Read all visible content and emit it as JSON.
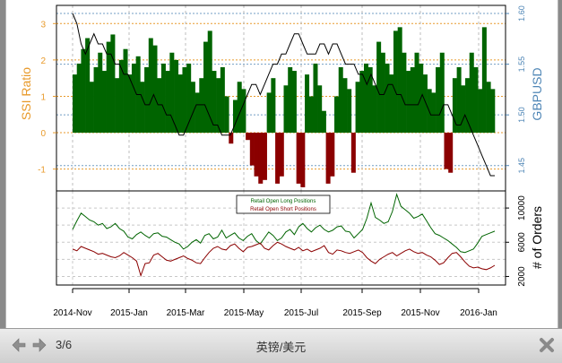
{
  "nav": {
    "page_indicator": "3/6",
    "caption": "英镑/美元"
  },
  "colors": {
    "long_bar": "#006400",
    "short_bar": "#8b0000",
    "ssi_axis": "#e89a2b",
    "gbpusd_axis": "#4f86b6",
    "price_line": "#000000"
  },
  "icons": [
    "arrow-left-icon",
    "arrow-right-icon",
    "close-icon"
  ],
  "chart_data": [
    {
      "type": "bar",
      "title": "",
      "ylabel": "SSI Ratio",
      "y2label": "GBPUSD",
      "ylim": [
        -1.6,
        3.5
      ],
      "y2lim": [
        1.425,
        1.608
      ],
      "y_ticks": [
        "-1",
        "0",
        "1",
        "2",
        "3"
      ],
      "y2_ticks": [
        "1.45",
        "1.50",
        "1.55",
        "1.60"
      ],
      "x_ticks": [
        "2014-Nov",
        "2015-Jan",
        "2015-Mar",
        "2015-May",
        "2015-Jul",
        "2015-Sep",
        "2015-Nov",
        "2016-Jan"
      ],
      "grid": true,
      "series": [
        {
          "kind": "ssi_bars",
          "values": [
            1.6,
            1.9,
            2.3,
            2.6,
            1.4,
            1.8,
            2.2,
            1.7,
            2.5,
            2.7,
            1.5,
            2.0,
            2.3,
            1.6,
            1.9,
            2.1,
            1.4,
            1.8,
            2.6,
            2.4,
            1.5,
            1.9,
            1.7,
            2.2,
            2.0,
            1.6,
            1.8,
            1.9,
            1.4,
            1.1,
            1.5,
            2.5,
            2.8,
            1.7,
            1.5,
            1.8,
            1.0,
            -0.3,
            0.9,
            1.4,
            1.2,
            -0.2,
            -0.9,
            -1.2,
            -1.4,
            -1.3,
            1.1,
            1.5,
            -1.4,
            -1.2,
            1.3,
            1.8,
            1.7,
            -1.4,
            -1.5,
            1.6,
            1.0,
            1.9,
            1.3,
            0.6,
            -1.4,
            -1.2,
            1.0,
            1.8,
            1.5,
            1.2,
            -1.1,
            1.4,
            1.7,
            1.9,
            1.8,
            1.3,
            2.5,
            2.2,
            1.9,
            1.6,
            2.8,
            2.9,
            2.2,
            1.7,
            1.8,
            2.2,
            1.9,
            1.6,
            1.2,
            1.1,
            1.8,
            2.2,
            -1.0,
            -1.1,
            1.5,
            1.8,
            1.3,
            1.5,
            2.2,
            1.8,
            1.2,
            2.9,
            1.4,
            1.2
          ]
        },
        {
          "kind": "gbpusd_line",
          "values": [
            1.6,
            1.59,
            1.57,
            1.56,
            1.57,
            1.58,
            1.57,
            1.57,
            1.56,
            1.56,
            1.55,
            1.55,
            1.54,
            1.54,
            1.53,
            1.52,
            1.52,
            1.51,
            1.51,
            1.52,
            1.51,
            1.51,
            1.5,
            1.5,
            1.49,
            1.48,
            1.48,
            1.49,
            1.5,
            1.51,
            1.51,
            1.51,
            1.5,
            1.49,
            1.49,
            1.48,
            1.48,
            1.48,
            1.49,
            1.5,
            1.51,
            1.52,
            1.53,
            1.53,
            1.52,
            1.53,
            1.54,
            1.55,
            1.55,
            1.56,
            1.56,
            1.57,
            1.58,
            1.58,
            1.57,
            1.56,
            1.56,
            1.56,
            1.57,
            1.57,
            1.56,
            1.57,
            1.57,
            1.56,
            1.55,
            1.55,
            1.55,
            1.54,
            1.54,
            1.53,
            1.54,
            1.53,
            1.52,
            1.52,
            1.53,
            1.53,
            1.52,
            1.52,
            1.51,
            1.51,
            1.51,
            1.51,
            1.52,
            1.51,
            1.5,
            1.5,
            1.5,
            1.51,
            1.51,
            1.5,
            1.49,
            1.49,
            1.5,
            1.49,
            1.48,
            1.47,
            1.46,
            1.45,
            1.44,
            1.44
          ]
        }
      ]
    },
    {
      "type": "line",
      "title": "",
      "ylabel": "# of Orders",
      "ylim": [
        1000,
        12000
      ],
      "y_ticks": [
        "2000",
        "6000",
        "10000"
      ],
      "x_ticks": [
        "2014-Nov",
        "2015-Jan",
        "2015-Mar",
        "2015-May",
        "2015-Jul",
        "2015-Sep",
        "2015-Nov",
        "2016-Jan"
      ],
      "grid": true,
      "legend_position": "top-center",
      "series": [
        {
          "name": "Retail Open Long Positions",
          "values": [
            7500,
            8500,
            9400,
            9000,
            8600,
            8400,
            8000,
            8200,
            7600,
            7800,
            8200,
            7600,
            7300,
            6600,
            6400,
            6900,
            7200,
            6800,
            6500,
            7000,
            7100,
            6700,
            6600,
            6300,
            6000,
            5800,
            5200,
            5500,
            6000,
            6300,
            5900,
            6800,
            7000,
            6400,
            6600,
            7400,
            6500,
            6800,
            7100,
            6500,
            6200,
            6700,
            7000,
            6200,
            5800,
            6500,
            7200,
            6800,
            6200,
            6500,
            7200,
            7500,
            6900,
            7800,
            8200,
            7600,
            7200,
            7700,
            8000,
            7500,
            7200,
            7400,
            7800,
            7900,
            7300,
            7200,
            6500,
            7000,
            7500,
            8800,
            10600,
            8900,
            8600,
            8200,
            8400,
            9600,
            11600,
            10200,
            9800,
            9400,
            8800,
            9000,
            9300,
            8500,
            7700,
            7000,
            6800,
            6500,
            6200,
            5800,
            5400,
            4900,
            4800,
            5000,
            5200,
            5900,
            6700,
            6900,
            7100,
            7300
          ]
        },
        {
          "name": "Retail Open Short Positions",
          "values": [
            5200,
            5000,
            5500,
            5300,
            5100,
            4900,
            4600,
            4700,
            4500,
            4300,
            4200,
            4400,
            4800,
            4500,
            4200,
            3800,
            2100,
            3500,
            3600,
            4500,
            4700,
            4300,
            3900,
            3800,
            4000,
            4200,
            4400,
            4100,
            3900,
            3600,
            3500,
            4200,
            4800,
            5300,
            5500,
            5200,
            5100,
            5600,
            5800,
            5300,
            4900,
            5400,
            5500,
            5700,
            5900,
            5300,
            5100,
            5600,
            6000,
            5800,
            5500,
            5300,
            5100,
            5400,
            5000,
            5200,
            4900,
            5100,
            5300,
            5600,
            4800,
            4600,
            5100,
            5000,
            4800,
            4700,
            4900,
            5100,
            4800,
            4200,
            3800,
            3500,
            4000,
            4300,
            4600,
            4800,
            4400,
            4700,
            5000,
            5200,
            4900,
            4700,
            4800,
            4500,
            4300,
            3900,
            3400,
            3600,
            4200,
            4700,
            4800,
            4300,
            3700,
            3200,
            3000,
            3100,
            2900,
            2800,
            3000,
            3300
          ]
        }
      ]
    }
  ]
}
